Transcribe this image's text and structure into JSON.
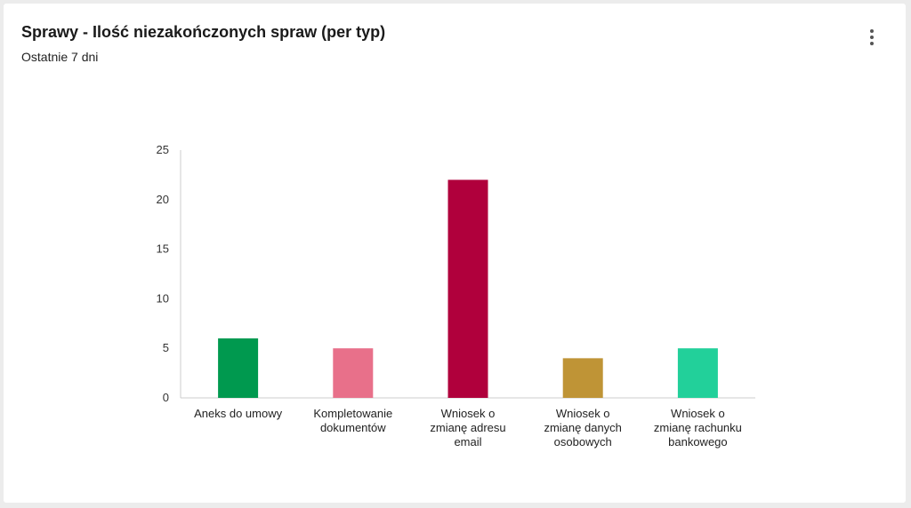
{
  "card": {
    "title": "Sprawy - Ilość niezakończonych spraw (per typ)",
    "subtitle": "Ostatnie 7 dni",
    "menu_icon": "more-vertical-icon"
  },
  "chart_data": {
    "type": "bar",
    "categories": [
      [
        "Aneks do umowy"
      ],
      [
        "Kompletowanie",
        "dokumentów"
      ],
      [
        "Wniosek o",
        "zmianę adresu",
        "email"
      ],
      [
        "Wniosek o",
        "zmianę danych",
        "osobowych"
      ],
      [
        "Wniosek o",
        "zmianę rachunku",
        "bankowego"
      ]
    ],
    "values": [
      6,
      5,
      22,
      4,
      5
    ],
    "colors": [
      "#00994f",
      "#e8708a",
      "#b0003c",
      "#bf9436",
      "#22d09a"
    ],
    "title": "",
    "xlabel": "",
    "ylabel": "",
    "ylim": [
      0,
      25
    ],
    "yticks": [
      "0",
      "5",
      "10",
      "15",
      "20",
      "25"
    ],
    "grid": false,
    "legend": "none"
  }
}
